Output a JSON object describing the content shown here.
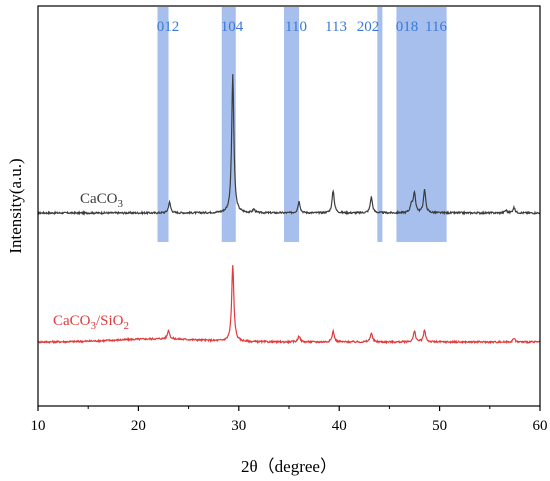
{
  "chart_data": {
    "type": "line",
    "xlabel": "2θ（degree）",
    "ylabel": "Intensity(a.u.)",
    "xlim": [
      10,
      60
    ],
    "x_ticks": [
      10,
      20,
      30,
      40,
      50,
      60
    ],
    "y_ticks_shown": false,
    "grid": false,
    "peak_bands": [
      {
        "label": "012",
        "from": 21.9,
        "to": 23.0
      },
      {
        "label": "104",
        "from": 28.3,
        "to": 29.7
      },
      {
        "label": "110",
        "from": 34.5,
        "to": 36.0
      },
      {
        "label": "113",
        "from": null,
        "to": null
      },
      {
        "label": "202",
        "from": 43.8,
        "to": 44.3
      },
      {
        "label": "018",
        "from": 45.7,
        "to": 48.2
      },
      {
        "label": "116",
        "from": 48.2,
        "to": 50.7
      }
    ],
    "band_color": "#9db8ea",
    "series": [
      {
        "name": "CaCO3",
        "label_main": "CaCO",
        "label_sub": "3",
        "color": "#3c3c3c",
        "baseline": 1.45,
        "peaks": [
          {
            "x": 23.1,
            "h": 0.12
          },
          {
            "x": 29.4,
            "h": 1.55
          },
          {
            "x": 31.5,
            "h": 0.04
          },
          {
            "x": 36.0,
            "h": 0.13
          },
          {
            "x": 39.4,
            "h": 0.25
          },
          {
            "x": 43.2,
            "h": 0.18
          },
          {
            "x": 47.2,
            "h": 0.1
          },
          {
            "x": 47.5,
            "h": 0.22
          },
          {
            "x": 48.5,
            "h": 0.26
          },
          {
            "x": 56.6,
            "h": 0.03
          },
          {
            "x": 57.4,
            "h": 0.06
          }
        ]
      },
      {
        "name": "CaCO3/SiO2",
        "label_main": "CaCO",
        "label_sub": "3",
        "label_mid": "/SiO",
        "label_sub2": "2",
        "color": "#e03a3a",
        "baseline": 0.0,
        "peaks": [
          {
            "x": 23.0,
            "h": 0.1
          },
          {
            "x": 29.4,
            "h": 0.85
          },
          {
            "x": 36.0,
            "h": 0.07
          },
          {
            "x": 39.4,
            "h": 0.12
          },
          {
            "x": 43.2,
            "h": 0.1
          },
          {
            "x": 47.5,
            "h": 0.12
          },
          {
            "x": 48.5,
            "h": 0.13
          },
          {
            "x": 57.4,
            "h": 0.04
          }
        ]
      }
    ]
  }
}
